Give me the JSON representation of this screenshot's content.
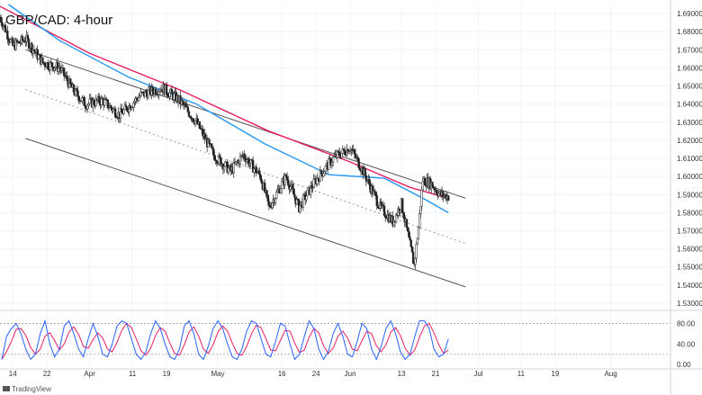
{
  "chart_data": {
    "type": "candlestick",
    "title": "GBP/CAD: 4-hour",
    "watermark": "TradingView",
    "price_axis": {
      "ticks": [
        "1.69000",
        "1.68000",
        "1.67000",
        "1.66000",
        "1.65000",
        "1.64000",
        "1.63000",
        "1.62000",
        "1.61000",
        "1.60000",
        "1.59000",
        "1.58000",
        "1.57000",
        "1.56000",
        "1.55000",
        "1.54000",
        "1.53000"
      ],
      "range": [
        1.527,
        1.695
      ]
    },
    "time_axis": {
      "ticks": [
        "14",
        "22",
        "Apr",
        "11",
        "19",
        "May",
        "16",
        "24",
        "Jun",
        "13",
        "21",
        "Jul",
        "11",
        "19",
        "Aug"
      ],
      "range": [
        "2022-03-11",
        "2022-08-15"
      ]
    },
    "candles_summary": [
      {
        "date": "2022-03-11",
        "value": 1.688
      },
      {
        "date": "2022-03-14",
        "value": 1.672
      },
      {
        "date": "2022-03-17",
        "value": 1.676
      },
      {
        "date": "2022-03-21",
        "value": 1.663
      },
      {
        "date": "2022-03-25",
        "value": 1.66
      },
      {
        "date": "2022-03-28",
        "value": 1.648
      },
      {
        "date": "2022-03-31",
        "value": 1.64
      },
      {
        "date": "2022-04-04",
        "value": 1.642
      },
      {
        "date": "2022-04-08",
        "value": 1.634
      },
      {
        "date": "2022-04-13",
        "value": 1.645
      },
      {
        "date": "2022-04-18",
        "value": 1.649
      },
      {
        "date": "2022-04-22",
        "value": 1.642
      },
      {
        "date": "2022-04-26",
        "value": 1.63
      },
      {
        "date": "2022-04-30",
        "value": 1.612
      },
      {
        "date": "2022-05-04",
        "value": 1.603
      },
      {
        "date": "2022-05-07",
        "value": 1.612
      },
      {
        "date": "2022-05-11",
        "value": 1.6
      },
      {
        "date": "2022-05-13",
        "value": 1.583
      },
      {
        "date": "2022-05-17",
        "value": 1.6
      },
      {
        "date": "2022-05-20",
        "value": 1.583
      },
      {
        "date": "2022-05-24",
        "value": 1.598
      },
      {
        "date": "2022-05-28",
        "value": 1.61
      },
      {
        "date": "2022-06-01",
        "value": 1.616
      },
      {
        "date": "2022-06-04",
        "value": 1.603
      },
      {
        "date": "2022-06-08",
        "value": 1.583
      },
      {
        "date": "2022-06-11",
        "value": 1.575
      },
      {
        "date": "2022-06-13",
        "value": 1.585
      },
      {
        "date": "2022-06-15",
        "value": 1.562
      },
      {
        "date": "2022-06-16",
        "value": 1.551
      },
      {
        "date": "2022-06-17",
        "value": 1.572
      },
      {
        "date": "2022-06-18",
        "value": 1.598
      },
      {
        "date": "2022-06-20",
        "value": 1.596
      },
      {
        "date": "2022-06-22",
        "value": 1.59
      },
      {
        "date": "2022-06-24",
        "value": 1.589
      }
    ],
    "moving_averages": [
      {
        "color": "#e91e63",
        "points": [
          [
            "2022-03-11",
            1.694
          ],
          [
            "2022-04-01",
            1.668
          ],
          [
            "2022-04-22",
            1.648
          ],
          [
            "2022-05-13",
            1.625
          ],
          [
            "2022-06-01",
            1.608
          ],
          [
            "2022-06-15",
            1.594
          ],
          [
            "2022-06-24",
            1.588
          ]
        ]
      },
      {
        "color": "#2196f3",
        "points": [
          [
            "2022-03-13",
            1.695
          ],
          [
            "2022-03-25",
            1.675
          ],
          [
            "2022-04-10",
            1.655
          ],
          [
            "2022-04-26",
            1.64
          ],
          [
            "2022-05-12",
            1.618
          ],
          [
            "2022-05-27",
            1.601
          ],
          [
            "2022-06-09",
            1.599
          ],
          [
            "2022-06-18",
            1.588
          ],
          [
            "2022-06-24",
            1.58
          ]
        ]
      }
    ],
    "trend_lines": [
      {
        "style": "solid",
        "points": [
          [
            "2022-03-17",
            1.67
          ],
          [
            "2022-06-28",
            1.588
          ]
        ]
      },
      {
        "style": "dashed",
        "points": [
          [
            "2022-03-17",
            1.648
          ],
          [
            "2022-06-28",
            1.563
          ]
        ]
      },
      {
        "style": "solid",
        "points": [
          [
            "2022-03-17",
            1.621
          ],
          [
            "2022-06-28",
            1.539
          ]
        ]
      }
    ],
    "oscillator": {
      "ticks": [
        "80.00",
        "40.00",
        "0.00"
      ],
      "range": [
        -5,
        100
      ],
      "levels": [
        80,
        20
      ],
      "series_colors": [
        "#2962ff",
        "#e91e63"
      ],
      "k_values": [
        10,
        55,
        70,
        80,
        60,
        30,
        10,
        20,
        60,
        85,
        40,
        15,
        30,
        75,
        85,
        60,
        30,
        15,
        50,
        80,
        55,
        20,
        15,
        40,
        75,
        85,
        80,
        50,
        20,
        10,
        25,
        60,
        85,
        70,
        40,
        15,
        10,
        30,
        75,
        85,
        60,
        20,
        10,
        35,
        70,
        85,
        70,
        40,
        15,
        10,
        30,
        65,
        85,
        80,
        50,
        20,
        15,
        45,
        80,
        75,
        40,
        10,
        20,
        55,
        85,
        70,
        30,
        10,
        25,
        60,
        80,
        55,
        20,
        15,
        45,
        80,
        70,
        30,
        10,
        35,
        70,
        85,
        60,
        25,
        10,
        20,
        55,
        85,
        85,
        70,
        30,
        15,
        20,
        50
      ]
    },
    "grid": true
  }
}
